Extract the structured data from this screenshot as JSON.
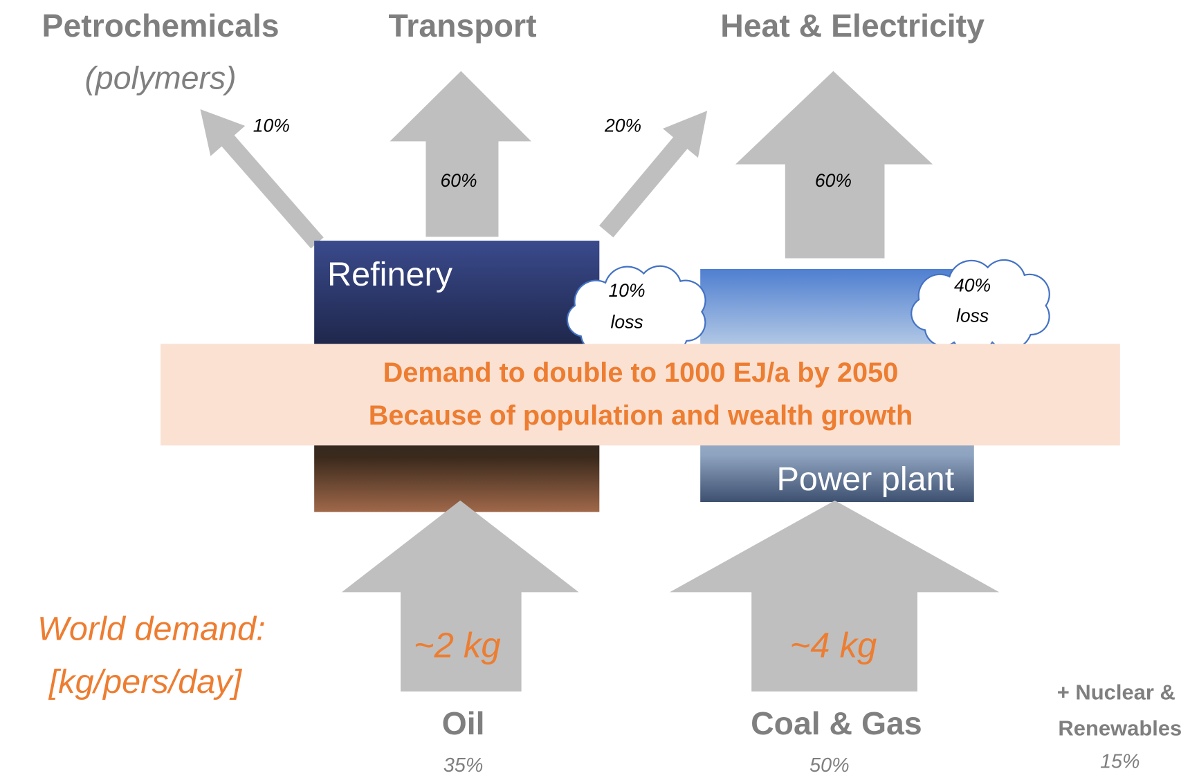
{
  "top_labels": {
    "petrochemicals": "Petrochemicals",
    "polymers": "(polymers)",
    "transport": "Transport",
    "heat": "Heat & Electricity"
  },
  "flows": {
    "petrochemicals": "10%",
    "transport": "60%",
    "refinery_to_heat": "20%",
    "heat": "60%"
  },
  "plants": {
    "refinery": {
      "label": "Refinery",
      "loss": [
        "10%",
        "loss"
      ]
    },
    "power_plant": {
      "label": "Power plant",
      "loss": [
        "40%",
        "loss"
      ]
    }
  },
  "banner": [
    "Demand to double to 1000 EJ/a by 2050",
    "Because of population and wealth growth"
  ],
  "world_demand": [
    "World demand:",
    "[kg/pers/day]"
  ],
  "sources": [
    {
      "amount": "~2 kg",
      "name": "Oil",
      "share": "35%"
    },
    {
      "amount": "~4 kg",
      "name": "Coal & Gas",
      "share": "50%"
    },
    {
      "name": [
        "+ Nuclear &",
        "Renewables"
      ],
      "share": "15%"
    }
  ]
}
